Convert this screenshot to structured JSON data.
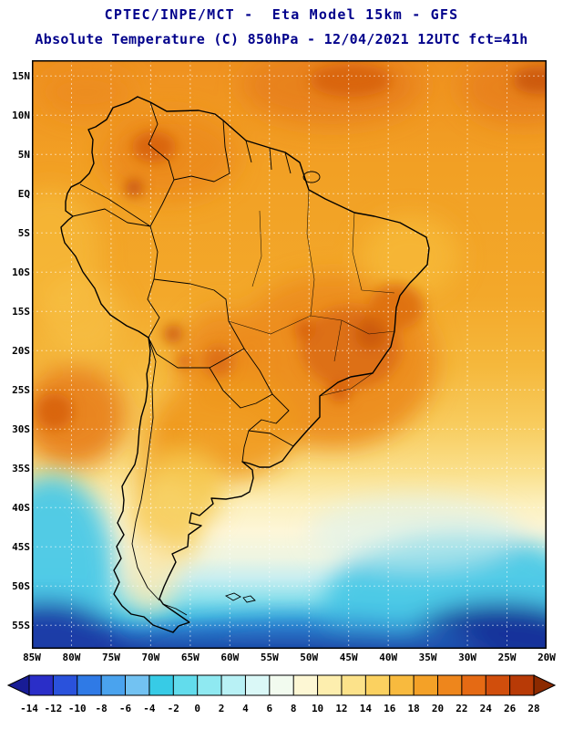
{
  "header": {
    "line1": "CPTEC/INPE/MCT -  Eta Model 15km - GFS",
    "line2": "Absolute Temperature (C) 850hPa - 12/04/2021 12UTC fct=41h"
  },
  "map": {
    "lat_labels": [
      "15N",
      "10N",
      "5N",
      "EQ",
      "5S",
      "10S",
      "15S",
      "20S",
      "25S",
      "30S",
      "35S",
      "40S",
      "45S",
      "50S",
      "55S"
    ],
    "lon_labels": [
      "85W",
      "80W",
      "75W",
      "70W",
      "65W",
      "60W",
      "55W",
      "50W",
      "45W",
      "40W",
      "35W",
      "30W",
      "25W",
      "20W"
    ]
  },
  "colorbar": {
    "tick_labels": [
      "-14",
      "-12",
      "-10",
      "-8",
      "-6",
      "-4",
      "-2",
      "0",
      "2",
      "4",
      "6",
      "8",
      "10",
      "12",
      "14",
      "16",
      "18",
      "20",
      "22",
      "24",
      "26",
      "28"
    ],
    "arrow_left_color": "#181c96",
    "segment_colors": [
      "#2a2ec8",
      "#2a52dc",
      "#2f7ae6",
      "#4aa3ee",
      "#72c2f2",
      "#37cbe6",
      "#62dcec",
      "#8fe9f1",
      "#b8f1f5",
      "#daf8f7",
      "#f2fbef",
      "#fdf7d4",
      "#fdeeae",
      "#fce28a",
      "#fbd160",
      "#f8ba3e",
      "#f4a127",
      "#ee861c",
      "#e56a14",
      "#d14e0c",
      "#b83a06"
    ],
    "arrow_right_color": "#8c2a00"
  },
  "theme": {
    "title_color": "#00008b",
    "axis_label_color": "#000000",
    "grid_color": "#ffffff"
  }
}
